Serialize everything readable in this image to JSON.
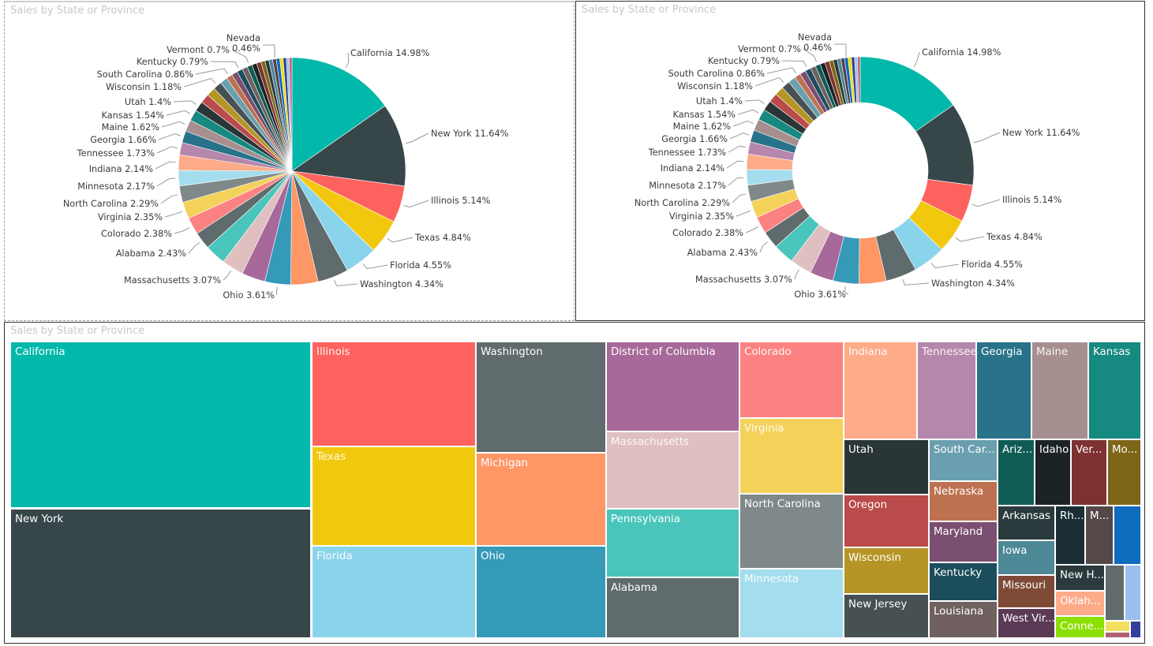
{
  "visuals": {
    "pie_title": "Sales by State or Province",
    "donut_title": "Sales by State or Province",
    "treemap_title": "Sales by State or Province"
  },
  "chart_data": [
    {
      "type": "pie",
      "title": "Sales by State or Province",
      "slices": [
        {
          "label": "California",
          "value": 14.98,
          "color": "#01B8AA"
        },
        {
          "label": "New York",
          "value": 11.64,
          "color": "#374649"
        },
        {
          "label": "Illinois",
          "value": 5.14,
          "color": "#FD625E"
        },
        {
          "label": "Texas",
          "value": 4.84,
          "color": "#F2C80F"
        },
        {
          "label": "Florida",
          "value": 4.55,
          "color": "#8AD4EB"
        },
        {
          "label": "Washington",
          "value": 4.34,
          "color": "#5F6B6D"
        },
        {
          "label": "",
          "value": 3.8,
          "color": "#FE9666"
        },
        {
          "label": "Ohio",
          "value": 3.61,
          "color": "#3599B8"
        },
        {
          "label": "",
          "value": 3.3,
          "color": "#A66999"
        },
        {
          "label": "Massachusetts",
          "value": 3.07,
          "color": "#DFBFBF"
        },
        {
          "label": "",
          "value": 2.9,
          "color": "#4AC5BB"
        },
        {
          "label": "Alabama",
          "value": 2.43,
          "color": "#5F6B6D"
        },
        {
          "label": "Colorado",
          "value": 2.38,
          "color": "#FB8281"
        },
        {
          "label": "Virginia",
          "value": 2.35,
          "color": "#F4D25A"
        },
        {
          "label": "North Carolina",
          "value": 2.29,
          "color": "#7F898A"
        },
        {
          "label": "Minnesota",
          "value": 2.17,
          "color": "#A4DDEE"
        },
        {
          "label": "Indiana",
          "value": 2.14,
          "color": "#FDAB89"
        },
        {
          "label": "Tennessee",
          "value": 1.73,
          "color": "#B687AC"
        },
        {
          "label": "Georgia",
          "value": 1.66,
          "color": "#28738A"
        },
        {
          "label": "Maine",
          "value": 1.62,
          "color": "#A78F8F"
        },
        {
          "label": "Kansas",
          "value": 1.54,
          "color": "#168980"
        },
        {
          "label": "Utah",
          "value": 1.4,
          "color": "#293537"
        },
        {
          "label": "",
          "value": 1.3,
          "color": "#BB4A4A"
        },
        {
          "label": "",
          "value": 1.25,
          "color": "#B59525"
        },
        {
          "label": "Wisconsin",
          "value": 1.18,
          "color": "#475052"
        },
        {
          "label": "",
          "value": 1.05,
          "color": "#6A9FB0"
        },
        {
          "label": "South Carolina",
          "value": 0.86,
          "color": "#BD7150"
        },
        {
          "label": "",
          "value": 0.83,
          "color": "#7B4F71"
        },
        {
          "label": "Kentucky",
          "value": 0.79,
          "color": "#1B4D5C"
        },
        {
          "label": "",
          "value": 0.75,
          "color": "#706060"
        },
        {
          "label": "Vermont",
          "value": 0.7,
          "color": "#0F5C55"
        },
        {
          "label": "",
          "value": 0.68,
          "color": "#1C2325"
        },
        {
          "label": "",
          "value": 0.62,
          "color": "#7D3231"
        },
        {
          "label": "",
          "value": 0.58,
          "color": "#7D6618"
        },
        {
          "label": "",
          "value": 0.55,
          "color": "#2B3A3C"
        },
        {
          "label": "",
          "value": 0.52,
          "color": "#4D8897"
        },
        {
          "label": "",
          "value": 0.5,
          "color": "#553E4F"
        },
        {
          "label": "",
          "value": 0.5,
          "color": "#0E6BBD"
        },
        {
          "label": "Nevada",
          "value": 0.46,
          "color": "#F0E000"
        },
        {
          "label": "",
          "value": 0.45,
          "color": "#333F9A"
        },
        {
          "label": "",
          "value": 0.4,
          "color": "#9AC0F0"
        },
        {
          "label": "",
          "value": 0.38,
          "color": "#C06070"
        }
      ]
    },
    {
      "type": "pie",
      "title": "Sales by State or Province",
      "slices": "same as chart 1"
    },
    {
      "type": "treemap",
      "title": "Sales by State or Province",
      "tiles": [
        {
          "label": "California",
          "color": "#01B8AA",
          "light": false
        },
        {
          "label": "New York",
          "color": "#374649",
          "light": false
        },
        {
          "label": "Illinois",
          "color": "#FD625E",
          "light": true
        },
        {
          "label": "Texas",
          "color": "#F2C80F",
          "light": true
        },
        {
          "label": "Florida",
          "color": "#8AD4EB",
          "light": true
        },
        {
          "label": "Washington",
          "color": "#5F6B6D",
          "light": false
        },
        {
          "label": "Michigan",
          "color": "#FE9666",
          "light": false
        },
        {
          "label": "Ohio",
          "color": "#3599B8",
          "light": false
        },
        {
          "label": "District of Columbia",
          "color": "#A66999",
          "light": false
        },
        {
          "label": "Massachusetts",
          "color": "#DFBFBF",
          "light": true
        },
        {
          "label": "Pennsylvania",
          "color": "#4AC5BB",
          "light": false
        },
        {
          "label": "Alabama",
          "color": "#5F6B6D",
          "light": false
        },
        {
          "label": "Colorado",
          "color": "#FB8281",
          "light": true
        },
        {
          "label": "Virginia",
          "color": "#F4D25A",
          "light": true
        },
        {
          "label": "North Carolina",
          "color": "#7F898A",
          "light": false
        },
        {
          "label": "Minnesota",
          "color": "#A4DDEE",
          "light": true
        },
        {
          "label": "Indiana",
          "color": "#FDAB89",
          "light": true
        },
        {
          "label": "Tennessee",
          "color": "#B687AC",
          "light": true
        },
        {
          "label": "Georgia",
          "color": "#28738A",
          "light": false
        },
        {
          "label": "Maine",
          "color": "#A78F8F",
          "light": true
        },
        {
          "label": "Kansas",
          "color": "#168980",
          "light": false
        },
        {
          "label": "Utah",
          "color": "#293537",
          "light": false
        },
        {
          "label": "Oregon",
          "color": "#BB4A4A",
          "light": false
        },
        {
          "label": "Wisconsin",
          "color": "#B59525",
          "light": false
        },
        {
          "label": "New Jersey",
          "color": "#475052",
          "light": false
        },
        {
          "label": "South Car...",
          "color": "#6A9FB0",
          "light": false
        },
        {
          "label": "Nebraska",
          "color": "#BD7150",
          "light": false
        },
        {
          "label": "Maryland",
          "color": "#7B4F71",
          "light": false
        },
        {
          "label": "Kentucky",
          "color": "#1B4D5C",
          "light": false
        },
        {
          "label": "Louisiana",
          "color": "#706060",
          "light": false
        },
        {
          "label": "Ariz...",
          "color": "#0F5C55",
          "light": false
        },
        {
          "label": "Idaho",
          "color": "#1C2325",
          "light": false
        },
        {
          "label": "Ver...",
          "color": "#7D3231",
          "light": false
        },
        {
          "label": "Mo...",
          "color": "#7D6618",
          "light": false
        },
        {
          "label": "Arkansas",
          "color": "#2B3A3C",
          "light": false
        },
        {
          "label": "Iowa",
          "color": "#4D8897",
          "light": false
        },
        {
          "label": "Missouri",
          "color": "#7E4A36",
          "light": false
        },
        {
          "label": "West Vir...",
          "color": "#5B3A55",
          "light": false
        },
        {
          "label": "Rh...",
          "color": "#1A2E33",
          "light": false
        },
        {
          "label": "M...",
          "color": "#554848",
          "light": false
        },
        {
          "label": "",
          "color": "#0E6BBD",
          "light": false
        },
        {
          "label": "New H...",
          "color": "#2B3A3C",
          "light": false
        },
        {
          "label": "Oklah...",
          "color": "#FDAB89",
          "light": false
        },
        {
          "label": "Conne...",
          "color": "#8CE000",
          "light": false
        },
        {
          "label": "",
          "color": "#5F6B6D",
          "light": false
        },
        {
          "label": "",
          "color": "#9AC0F0",
          "light": false
        },
        {
          "label": "",
          "color": "#F4E060",
          "light": false
        },
        {
          "label": "",
          "color": "#333F9A",
          "light": false
        },
        {
          "label": "",
          "color": "#B06070",
          "light": false
        }
      ]
    }
  ]
}
